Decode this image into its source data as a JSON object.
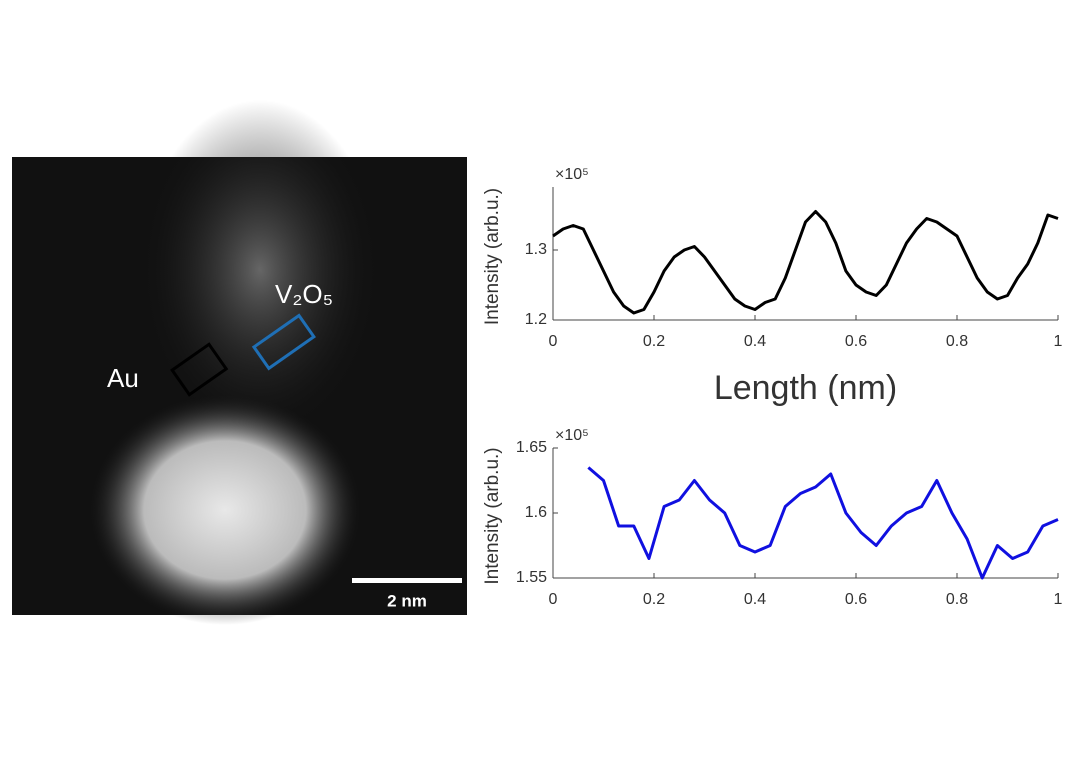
{
  "image": {
    "labels": [
      "Au",
      "V₂O₅"
    ],
    "scale_bar": "2 nm"
  },
  "chart_data": [
    {
      "type": "line",
      "y_label": "Intensity (arb.u.)",
      "y_exponent": "×10⁵",
      "x_label": "Length (nm)",
      "x": [
        0,
        0.02,
        0.04,
        0.06,
        0.08,
        0.1,
        0.12,
        0.14,
        0.16,
        0.18,
        0.2,
        0.22,
        0.24,
        0.26,
        0.28,
        0.3,
        0.32,
        0.34,
        0.36,
        0.38,
        0.4,
        0.42,
        0.44,
        0.46,
        0.48,
        0.5,
        0.52,
        0.54,
        0.56,
        0.58,
        0.6,
        0.62,
        0.64,
        0.66,
        0.68,
        0.7,
        0.72,
        0.74,
        0.76,
        0.78,
        0.8,
        0.82,
        0.84,
        0.86,
        0.88,
        0.9,
        0.92,
        0.94,
        0.96,
        0.98,
        1
      ],
      "series": [
        {
          "color": "#000000",
          "values": [
            1.32,
            1.33,
            1.335,
            1.33,
            1.3,
            1.27,
            1.24,
            1.22,
            1.21,
            1.215,
            1.24,
            1.27,
            1.29,
            1.3,
            1.305,
            1.29,
            1.27,
            1.25,
            1.23,
            1.22,
            1.215,
            1.225,
            1.23,
            1.26,
            1.3,
            1.34,
            1.355,
            1.34,
            1.31,
            1.27,
            1.25,
            1.24,
            1.235,
            1.25,
            1.28,
            1.31,
            1.33,
            1.345,
            1.34,
            1.33,
            1.32,
            1.29,
            1.26,
            1.24,
            1.23,
            1.235,
            1.26,
            1.28,
            1.31,
            1.35,
            1.345
          ]
        }
      ],
      "xlim": [
        0,
        1
      ],
      "xticks": [
        0,
        0.2,
        0.4,
        0.6,
        0.8,
        1
      ],
      "ylim": [
        1.2,
        1.39
      ],
      "yticks": [
        1.2,
        1.3
      ]
    },
    {
      "type": "line",
      "y_label": "Intensity (arb.u.)",
      "y_exponent": "×10⁵",
      "x": [
        0.07,
        0.1,
        0.13,
        0.16,
        0.19,
        0.22,
        0.25,
        0.28,
        0.31,
        0.34,
        0.37,
        0.4,
        0.43,
        0.46,
        0.49,
        0.52,
        0.55,
        0.58,
        0.61,
        0.64,
        0.67,
        0.7,
        0.73,
        0.76,
        0.79,
        0.82,
        0.85,
        0.88,
        0.91,
        0.94,
        0.97,
        1
      ],
      "series": [
        {
          "color": "#1010e0",
          "values": [
            1.635,
            1.625,
            1.59,
            1.59,
            1.565,
            1.605,
            1.61,
            1.625,
            1.61,
            1.6,
            1.575,
            1.57,
            1.575,
            1.605,
            1.615,
            1.62,
            1.63,
            1.6,
            1.585,
            1.575,
            1.59,
            1.6,
            1.605,
            1.625,
            1.6,
            1.58,
            1.55,
            1.575,
            1.565,
            1.57,
            1.59,
            1.595
          ]
        }
      ],
      "xlim": [
        0,
        1
      ],
      "xticks": [
        0,
        0.2,
        0.4,
        0.6,
        0.8,
        1
      ],
      "ylim": [
        1.55,
        1.65
      ],
      "yticks": [
        1.55,
        1.6,
        1.65
      ]
    }
  ]
}
